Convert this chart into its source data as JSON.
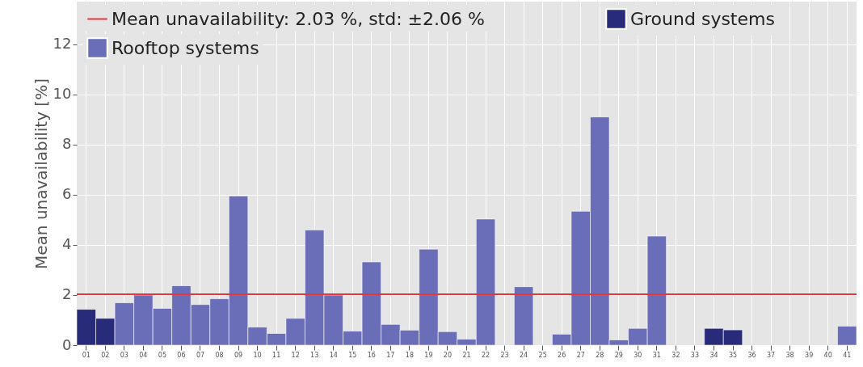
{
  "chart_data": {
    "type": "bar",
    "ylabel": "Mean unavailability [%]",
    "categories": [
      "01",
      "02",
      "03",
      "04",
      "05",
      "06",
      "07",
      "08",
      "09",
      "10",
      "11",
      "12",
      "13",
      "14",
      "15",
      "16",
      "17",
      "18",
      "19",
      "20",
      "21",
      "22",
      "23",
      "24",
      "25",
      "26",
      "27",
      "28",
      "29",
      "30",
      "31",
      "32",
      "33",
      "34",
      "35",
      "36",
      "37",
      "38",
      "39",
      "40",
      "41"
    ],
    "series": [
      {
        "name": "Ground systems",
        "color": "#282a7a",
        "values": [
          1.43,
          1.07,
          null,
          null,
          null,
          null,
          null,
          null,
          null,
          null,
          null,
          null,
          null,
          null,
          null,
          null,
          null,
          null,
          null,
          null,
          null,
          null,
          null,
          null,
          null,
          null,
          null,
          null,
          null,
          null,
          null,
          null,
          null,
          0.67,
          0.61,
          null,
          null,
          null,
          null,
          null,
          null
        ]
      },
      {
        "name": "Rooftop systems",
        "color": "#6a6db7",
        "values": [
          null,
          null,
          1.69,
          2.0,
          1.47,
          2.37,
          1.62,
          1.85,
          5.95,
          0.72,
          0.47,
          1.07,
          4.59,
          2.0,
          0.56,
          3.32,
          0.83,
          0.6,
          3.83,
          0.54,
          0.24,
          5.03,
          null,
          2.33,
          null,
          0.44,
          5.34,
          9.1,
          0.21,
          0.67,
          4.35,
          null,
          null,
          null,
          null,
          null,
          null,
          null,
          null,
          null,
          0.76
        ]
      }
    ],
    "ylim": [
      0,
      13.7
    ],
    "yticks": [
      0,
      2,
      4,
      6,
      8,
      10,
      12
    ],
    "ref_lines": [
      {
        "axis": "y",
        "value": 2.03,
        "label": "Mean unavailability: 2.03 %, std: ±2.06 %",
        "color": "#e8343a"
      }
    ],
    "grid": true,
    "legend": "top"
  }
}
